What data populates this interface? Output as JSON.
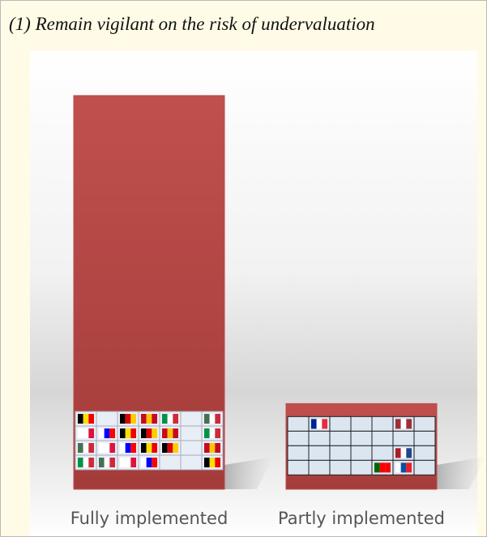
{
  "chart_data": {
    "type": "bar",
    "title": "(1)  Remain vigilant on the risk of undervaluation",
    "categories": [
      "Fully implemented",
      "Partly implemented"
    ],
    "values": [
      23,
      5
    ],
    "color": "#b94a48"
  }
}
